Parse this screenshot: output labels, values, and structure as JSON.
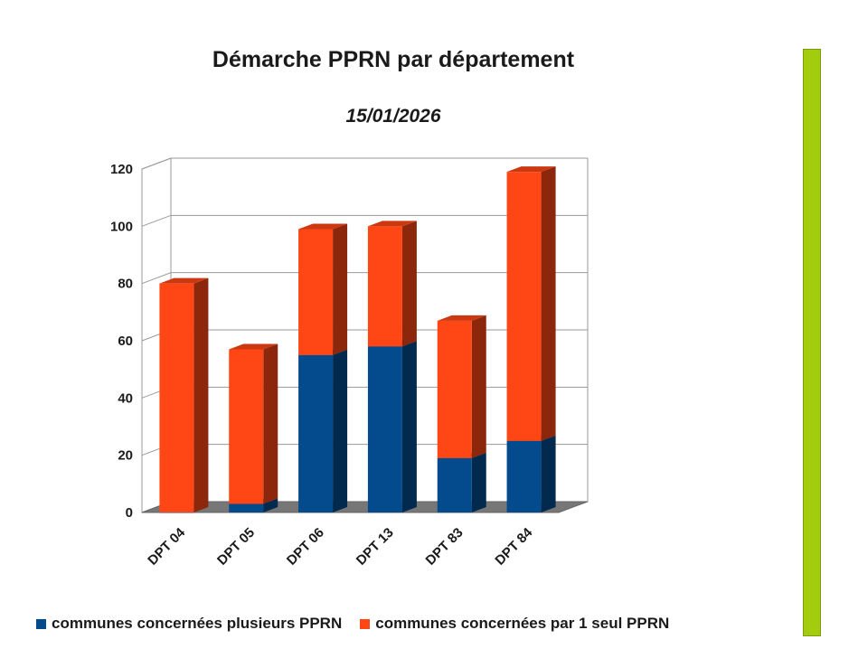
{
  "chart_data": {
    "type": "bar",
    "stacked": true,
    "three_d": true,
    "title": "Démarche PPRN par département",
    "subtitle": "15/01/2026",
    "categories": [
      "DPT 04",
      "DPT 05",
      "DPT 06",
      "DPT 13",
      "DPT 83",
      "DPT 84"
    ],
    "series": [
      {
        "name": "communes concernées plusieurs PPRN",
        "color": "#034b8d",
        "values": [
          0,
          3,
          55,
          58,
          19,
          25
        ]
      },
      {
        "name": "communes concernées par 1 seul PPRN",
        "color": "#ff4614",
        "values": [
          80,
          54,
          44,
          42,
          48,
          94
        ]
      }
    ],
    "ylim": [
      0,
      120
    ],
    "yticks": [
      0,
      20,
      40,
      60,
      80,
      100,
      120
    ],
    "grid": true,
    "legend_position": "bottom"
  },
  "side_bar_color": "#a3cc0f"
}
